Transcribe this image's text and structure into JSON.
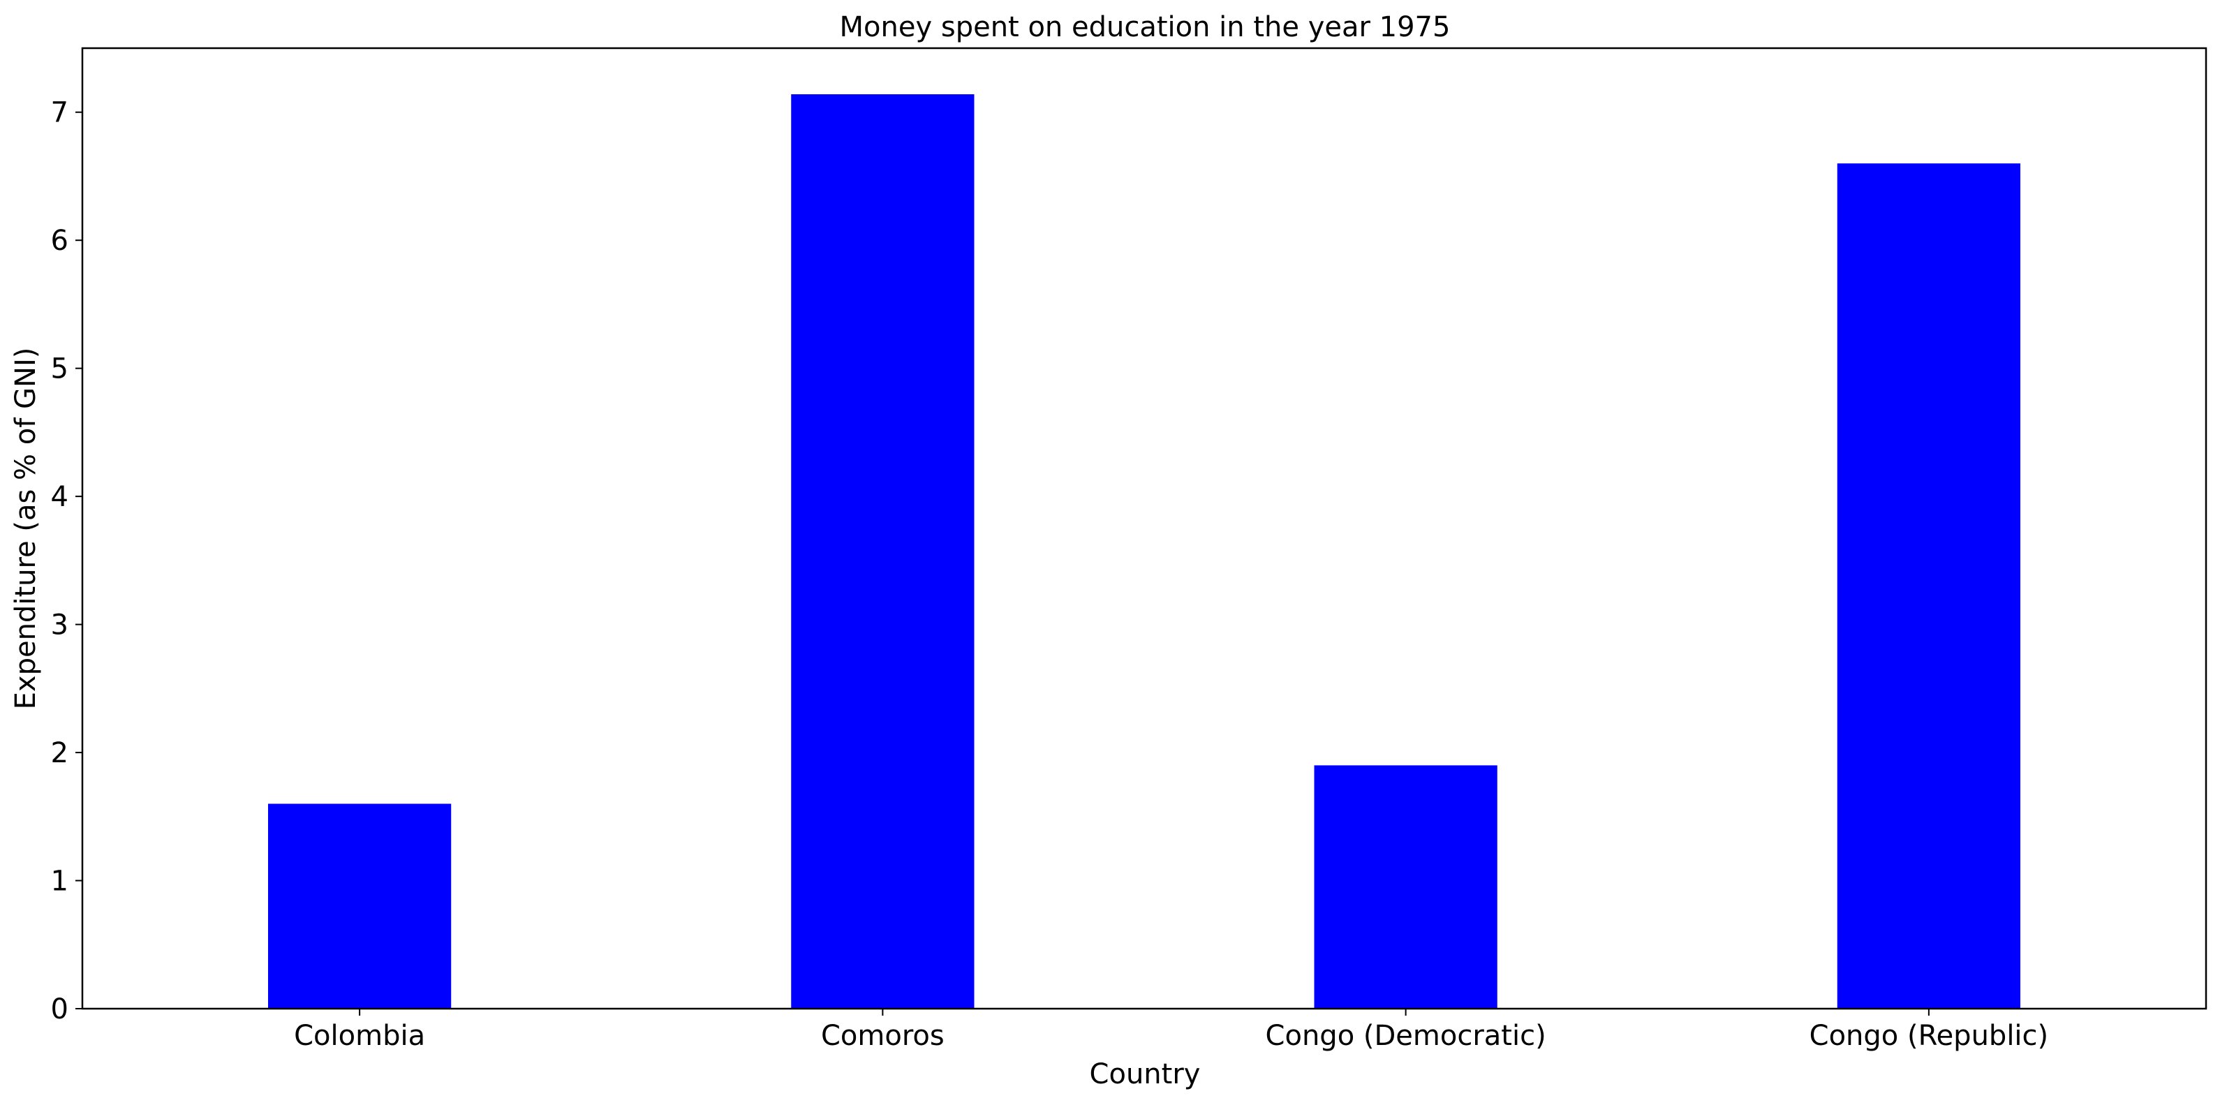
{
  "chart_data": {
    "type": "bar",
    "title": "Money spent on education in the year 1975",
    "xlabel": "Country",
    "ylabel": "Expenditure (as % of GNI)",
    "categories": [
      "Colombia",
      "Comoros",
      "Congo (Democratic)",
      "Congo (Republic)"
    ],
    "values": [
      1.6,
      7.14,
      1.9,
      6.6
    ],
    "ylim": [
      0,
      7.5
    ],
    "yticks": [
      0,
      1,
      2,
      3,
      4,
      5,
      6,
      7
    ],
    "ytick_labels": [
      "0",
      "1",
      "2",
      "3",
      "4",
      "5",
      "6",
      "7"
    ],
    "grid": false,
    "legend": "none",
    "colors": {
      "bar": "#0000ff",
      "axis": "#000000",
      "background": "#ffffff"
    }
  }
}
